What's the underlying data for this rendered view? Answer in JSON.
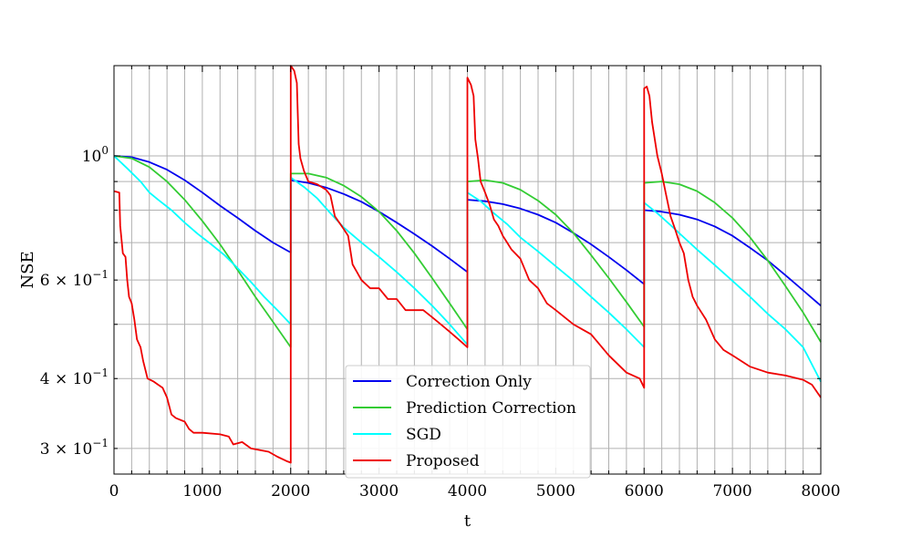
{
  "chart_data": {
    "type": "line",
    "title": "",
    "xlabel": "t",
    "ylabel": "NSE",
    "xlim": [
      0,
      8000
    ],
    "ylim": [
      0.27,
      1.45
    ],
    "yscale": "log",
    "grid": true,
    "legend_position": "bottom-center",
    "x_ticks": [
      {
        "value": 0,
        "label": "0"
      },
      {
        "value": 1000,
        "label": "1000"
      },
      {
        "value": 2000,
        "label": "2000"
      },
      {
        "value": 3000,
        "label": "3000"
      },
      {
        "value": 4000,
        "label": "4000"
      },
      {
        "value": 5000,
        "label": "5000"
      },
      {
        "value": 6000,
        "label": "6000"
      },
      {
        "value": 7000,
        "label": "7000"
      },
      {
        "value": 8000,
        "label": "8000"
      }
    ],
    "y_ticks": [
      {
        "value": 1.0,
        "base": "10",
        "exp": "0"
      },
      {
        "value": 0.6,
        "coef": "6 × ",
        "base": "10",
        "exp": "−1"
      },
      {
        "value": 0.4,
        "coef": "4 × ",
        "base": "10",
        "exp": "−1"
      },
      {
        "value": 0.3,
        "coef": "3 × ",
        "base": "10",
        "exp": "−1"
      }
    ],
    "series": [
      {
        "name": "Correction Only",
        "color": "#0000ee",
        "points": [
          [
            0,
            1.0
          ],
          [
            200,
            0.995
          ],
          [
            400,
            0.975
          ],
          [
            600,
            0.945
          ],
          [
            800,
            0.905
          ],
          [
            1000,
            0.86
          ],
          [
            1200,
            0.815
          ],
          [
            1400,
            0.775
          ],
          [
            1600,
            0.735
          ],
          [
            1800,
            0.7
          ],
          [
            2000,
            0.672
          ],
          [
            2000,
            0.905
          ],
          [
            2200,
            0.895
          ],
          [
            2400,
            0.878
          ],
          [
            2600,
            0.855
          ],
          [
            2800,
            0.828
          ],
          [
            3000,
            0.795
          ],
          [
            3200,
            0.76
          ],
          [
            3400,
            0.725
          ],
          [
            3600,
            0.69
          ],
          [
            3800,
            0.655
          ],
          [
            4000,
            0.62
          ],
          [
            4000,
            0.835
          ],
          [
            4200,
            0.83
          ],
          [
            4400,
            0.82
          ],
          [
            4600,
            0.805
          ],
          [
            4800,
            0.785
          ],
          [
            5000,
            0.76
          ],
          [
            5200,
            0.728
          ],
          [
            5400,
            0.695
          ],
          [
            5600,
            0.66
          ],
          [
            5800,
            0.625
          ],
          [
            6000,
            0.59
          ],
          [
            6000,
            0.8
          ],
          [
            6200,
            0.795
          ],
          [
            6400,
            0.785
          ],
          [
            6600,
            0.77
          ],
          [
            6800,
            0.748
          ],
          [
            7000,
            0.72
          ],
          [
            7200,
            0.685
          ],
          [
            7400,
            0.65
          ],
          [
            7600,
            0.612
          ],
          [
            7800,
            0.575
          ],
          [
            8000,
            0.54
          ]
        ]
      },
      {
        "name": "Prediction Correction",
        "color": "#33cc33",
        "points": [
          [
            0,
            1.0
          ],
          [
            200,
            0.99
          ],
          [
            400,
            0.955
          ],
          [
            600,
            0.9
          ],
          [
            800,
            0.835
          ],
          [
            1000,
            0.765
          ],
          [
            1200,
            0.695
          ],
          [
            1400,
            0.625
          ],
          [
            1600,
            0.56
          ],
          [
            1800,
            0.505
          ],
          [
            2000,
            0.455
          ],
          [
            2000,
            0.93
          ],
          [
            2200,
            0.93
          ],
          [
            2400,
            0.915
          ],
          [
            2600,
            0.885
          ],
          [
            2800,
            0.845
          ],
          [
            3000,
            0.795
          ],
          [
            3200,
            0.735
          ],
          [
            3400,
            0.67
          ],
          [
            3600,
            0.605
          ],
          [
            3800,
            0.545
          ],
          [
            4000,
            0.49
          ],
          [
            4000,
            0.9
          ],
          [
            4200,
            0.905
          ],
          [
            4400,
            0.895
          ],
          [
            4600,
            0.87
          ],
          [
            4800,
            0.832
          ],
          [
            5000,
            0.785
          ],
          [
            5200,
            0.728
          ],
          [
            5400,
            0.665
          ],
          [
            5600,
            0.605
          ],
          [
            5800,
            0.548
          ],
          [
            6000,
            0.495
          ],
          [
            6000,
            0.895
          ],
          [
            6200,
            0.9
          ],
          [
            6400,
            0.89
          ],
          [
            6600,
            0.865
          ],
          [
            6800,
            0.825
          ],
          [
            7000,
            0.775
          ],
          [
            7200,
            0.715
          ],
          [
            7400,
            0.65
          ],
          [
            7600,
            0.585
          ],
          [
            7800,
            0.525
          ],
          [
            8000,
            0.465
          ]
        ]
      },
      {
        "name": "SGD",
        "color": "#00ffff",
        "points": [
          [
            0,
            1.0
          ],
          [
            150,
            0.95
          ],
          [
            300,
            0.9
          ],
          [
            400,
            0.86
          ],
          [
            500,
            0.835
          ],
          [
            650,
            0.8
          ],
          [
            800,
            0.76
          ],
          [
            950,
            0.725
          ],
          [
            1100,
            0.695
          ],
          [
            1250,
            0.665
          ],
          [
            1400,
            0.63
          ],
          [
            1550,
            0.595
          ],
          [
            1700,
            0.56
          ],
          [
            1850,
            0.53
          ],
          [
            2000,
            0.5
          ],
          [
            2000,
            0.915
          ],
          [
            2150,
            0.88
          ],
          [
            2300,
            0.84
          ],
          [
            2450,
            0.79
          ],
          [
            2600,
            0.745
          ],
          [
            2800,
            0.7
          ],
          [
            3000,
            0.66
          ],
          [
            3200,
            0.62
          ],
          [
            3400,
            0.58
          ],
          [
            3600,
            0.54
          ],
          [
            3800,
            0.5
          ],
          [
            4000,
            0.46
          ],
          [
            4000,
            0.86
          ],
          [
            4150,
            0.83
          ],
          [
            4300,
            0.79
          ],
          [
            4450,
            0.755
          ],
          [
            4600,
            0.715
          ],
          [
            4800,
            0.675
          ],
          [
            5000,
            0.635
          ],
          [
            5200,
            0.598
          ],
          [
            5400,
            0.56
          ],
          [
            5600,
            0.525
          ],
          [
            5800,
            0.49
          ],
          [
            6000,
            0.455
          ],
          [
            6000,
            0.825
          ],
          [
            6150,
            0.79
          ],
          [
            6300,
            0.752
          ],
          [
            6450,
            0.715
          ],
          [
            6600,
            0.68
          ],
          [
            6800,
            0.638
          ],
          [
            7000,
            0.598
          ],
          [
            7200,
            0.56
          ],
          [
            7400,
            0.522
          ],
          [
            7600,
            0.49
          ],
          [
            7800,
            0.455
          ],
          [
            8000,
            0.395
          ]
        ]
      },
      {
        "name": "Proposed",
        "color": "#ee0000",
        "points": [
          [
            0,
            0.865
          ],
          [
            60,
            0.86
          ],
          [
            70,
            0.75
          ],
          [
            100,
            0.67
          ],
          [
            130,
            0.66
          ],
          [
            150,
            0.6
          ],
          [
            170,
            0.56
          ],
          [
            200,
            0.545
          ],
          [
            230,
            0.51
          ],
          [
            260,
            0.47
          ],
          [
            300,
            0.455
          ],
          [
            330,
            0.43
          ],
          [
            380,
            0.4
          ],
          [
            450,
            0.395
          ],
          [
            500,
            0.39
          ],
          [
            550,
            0.385
          ],
          [
            600,
            0.37
          ],
          [
            650,
            0.345
          ],
          [
            700,
            0.34
          ],
          [
            800,
            0.335
          ],
          [
            850,
            0.325
          ],
          [
            900,
            0.32
          ],
          [
            1000,
            0.32
          ],
          [
            1200,
            0.318
          ],
          [
            1300,
            0.315
          ],
          [
            1350,
            0.305
          ],
          [
            1450,
            0.308
          ],
          [
            1550,
            0.3
          ],
          [
            1750,
            0.296
          ],
          [
            1850,
            0.29
          ],
          [
            1950,
            0.285
          ],
          [
            2000,
            0.283
          ],
          [
            2000,
            1.45
          ],
          [
            2040,
            1.42
          ],
          [
            2070,
            1.35
          ],
          [
            2090,
            1.05
          ],
          [
            2110,
            0.99
          ],
          [
            2150,
            0.94
          ],
          [
            2200,
            0.9
          ],
          [
            2300,
            0.89
          ],
          [
            2400,
            0.87
          ],
          [
            2450,
            0.85
          ],
          [
            2500,
            0.78
          ],
          [
            2550,
            0.76
          ],
          [
            2600,
            0.74
          ],
          [
            2650,
            0.72
          ],
          [
            2700,
            0.64
          ],
          [
            2750,
            0.62
          ],
          [
            2800,
            0.6
          ],
          [
            2900,
            0.58
          ],
          [
            3000,
            0.58
          ],
          [
            3100,
            0.555
          ],
          [
            3200,
            0.555
          ],
          [
            3300,
            0.53
          ],
          [
            3500,
            0.53
          ],
          [
            3600,
            0.515
          ],
          [
            3700,
            0.5
          ],
          [
            3800,
            0.485
          ],
          [
            3900,
            0.47
          ],
          [
            4000,
            0.455
          ],
          [
            4000,
            1.38
          ],
          [
            4040,
            1.34
          ],
          [
            4070,
            1.28
          ],
          [
            4090,
            1.07
          ],
          [
            4120,
            0.99
          ],
          [
            4150,
            0.9
          ],
          [
            4200,
            0.86
          ],
          [
            4250,
            0.82
          ],
          [
            4300,
            0.77
          ],
          [
            4350,
            0.75
          ],
          [
            4400,
            0.72
          ],
          [
            4450,
            0.7
          ],
          [
            4500,
            0.68
          ],
          [
            4600,
            0.655
          ],
          [
            4700,
            0.6
          ],
          [
            4800,
            0.58
          ],
          [
            4900,
            0.545
          ],
          [
            5000,
            0.53
          ],
          [
            5200,
            0.5
          ],
          [
            5400,
            0.48
          ],
          [
            5600,
            0.44
          ],
          [
            5800,
            0.41
          ],
          [
            5950,
            0.4
          ],
          [
            6000,
            0.385
          ],
          [
            6000,
            1.32
          ],
          [
            6030,
            1.33
          ],
          [
            6060,
            1.28
          ],
          [
            6090,
            1.15
          ],
          [
            6150,
            1.0
          ],
          [
            6200,
            0.93
          ],
          [
            6250,
            0.85
          ],
          [
            6300,
            0.78
          ],
          [
            6350,
            0.74
          ],
          [
            6400,
            0.7
          ],
          [
            6450,
            0.67
          ],
          [
            6500,
            0.6
          ],
          [
            6550,
            0.56
          ],
          [
            6600,
            0.54
          ],
          [
            6700,
            0.51
          ],
          [
            6800,
            0.47
          ],
          [
            6900,
            0.45
          ],
          [
            7000,
            0.44
          ],
          [
            7200,
            0.42
          ],
          [
            7400,
            0.41
          ],
          [
            7600,
            0.405
          ],
          [
            7800,
            0.398
          ],
          [
            7900,
            0.39
          ],
          [
            8000,
            0.37
          ]
        ]
      }
    ]
  }
}
